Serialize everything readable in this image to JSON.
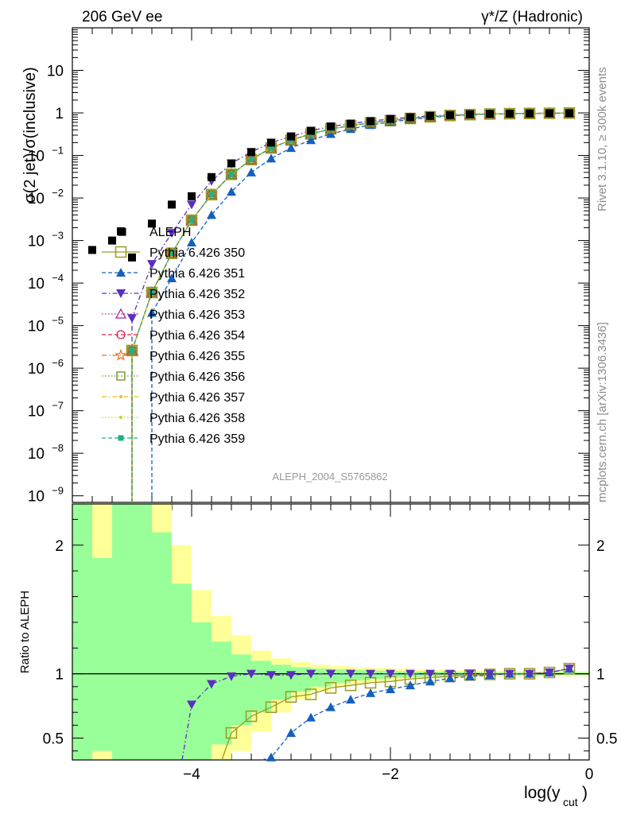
{
  "header": {
    "left": "206 GeV ee",
    "right": "γ*/Z (Hadronic)"
  },
  "side_text": {
    "top": "Rivet 3.1.10, ≥ 300k events",
    "bottom": "mcplots.cern.ch [arXiv:1306.3436]"
  },
  "analysis_label": "ALEPH_2004_S5765862",
  "chart_data": [
    {
      "type": "scatter",
      "panel": "main",
      "ylabel": "σ(2 jet)/σ(inclusive)",
      "y_scale": "log",
      "ylim": [
        7e-10,
        100
      ],
      "xlim": [
        -5.2,
        0
      ],
      "y_tick_labels": [
        "10^-9",
        "10^-8",
        "10^-7",
        "10^-6",
        "10^-5",
        "10^-4",
        "10^-3",
        "10^-2",
        "10^-1",
        "1",
        "10"
      ],
      "legend_position": "left-middle",
      "x": [
        -5.0,
        -4.8,
        -4.7,
        -4.6,
        -4.4,
        -4.2,
        -4.0,
        -3.8,
        -3.6,
        -3.4,
        -3.2,
        -3.0,
        -2.8,
        -2.6,
        -2.4,
        -2.2,
        -2.0,
        -1.8,
        -1.6,
        -1.4,
        -1.2,
        -1.0,
        -0.8,
        -0.6,
        -0.4,
        -0.2
      ],
      "series": [
        {
          "name": "ALEPH",
          "color": "#000000",
          "marker": "square-filled",
          "line": "none",
          "values": [
            0.0006,
            0.001,
            0.0016,
            0.0004,
            0.0025,
            0.007,
            0.011,
            0.031,
            0.065,
            0.12,
            0.2,
            0.28,
            0.38,
            0.48,
            0.56,
            0.64,
            0.72,
            0.79,
            0.85,
            0.89,
            0.93,
            0.95,
            0.96,
            0.97,
            0.98,
            0.985
          ]
        },
        {
          "name": "Pythia 6.426 350",
          "color": "#9a9a20",
          "marker": "square-open-large",
          "line": "solid",
          "values": [
            null,
            null,
            null,
            2.6e-06,
            6e-05,
            0.0005,
            0.003,
            0.012,
            0.036,
            0.08,
            0.15,
            0.23,
            0.32,
            0.42,
            0.5,
            0.58,
            0.66,
            0.74,
            0.81,
            0.87,
            0.91,
            0.94,
            0.96,
            0.97,
            0.98,
            0.99
          ]
        },
        {
          "name": "Pythia 6.426 351",
          "color": "#1560bd",
          "marker": "triangle-up-filled",
          "line": "dashed",
          "values": [
            null,
            null,
            null,
            null,
            2e-05,
            0.00013,
            0.0009,
            0.004,
            0.014,
            0.04,
            0.085,
            0.15,
            0.23,
            0.32,
            0.42,
            0.52,
            0.61,
            0.7,
            0.78,
            0.85,
            0.9,
            0.94,
            0.96,
            0.97,
            0.98,
            0.99
          ]
        },
        {
          "name": "Pythia 6.426 352",
          "color": "#5b2fbf",
          "marker": "triangle-down-filled",
          "line": "dashdot",
          "values": [
            null,
            null,
            null,
            1.5e-05,
            0.00028,
            0.0015,
            0.007,
            0.025,
            0.065,
            0.12,
            0.2,
            0.28,
            0.38,
            0.48,
            0.56,
            0.64,
            0.72,
            0.79,
            0.85,
            0.89,
            0.93,
            0.95,
            0.96,
            0.97,
            0.98,
            0.99
          ]
        },
        {
          "name": "Pythia 6.426 353",
          "color": "#b01f9e",
          "marker": "triangle-up-open",
          "line": "dotted",
          "values": [
            null,
            null,
            null,
            2.6e-06,
            6e-05,
            0.0005,
            0.003,
            0.012,
            0.036,
            0.08,
            0.15,
            0.23,
            0.32,
            0.42,
            0.5,
            0.58,
            0.66,
            0.74,
            0.81,
            0.87,
            0.91,
            0.94,
            0.96,
            0.97,
            0.98,
            0.99
          ]
        },
        {
          "name": "Pythia 6.426 354",
          "color": "#e0204a",
          "marker": "circle-open",
          "line": "dashed",
          "values": [
            null,
            null,
            null,
            2.6e-06,
            6e-05,
            0.0005,
            0.003,
            0.012,
            0.036,
            0.08,
            0.15,
            0.23,
            0.32,
            0.42,
            0.5,
            0.58,
            0.66,
            0.74,
            0.81,
            0.87,
            0.91,
            0.94,
            0.96,
            0.97,
            0.98,
            0.99
          ]
        },
        {
          "name": "Pythia 6.426 355",
          "color": "#f07020",
          "marker": "star-open",
          "line": "dashdot",
          "values": [
            null,
            null,
            null,
            2.6e-06,
            6e-05,
            0.0005,
            0.003,
            0.012,
            0.036,
            0.08,
            0.15,
            0.23,
            0.32,
            0.42,
            0.5,
            0.58,
            0.66,
            0.74,
            0.81,
            0.87,
            0.91,
            0.94,
            0.96,
            0.97,
            0.98,
            0.99
          ]
        },
        {
          "name": "Pythia 6.426 356",
          "color": "#6e8e1e",
          "marker": "square-open",
          "line": "dotted",
          "values": [
            null,
            null,
            null,
            2.6e-06,
            6e-05,
            0.0005,
            0.003,
            0.012,
            0.036,
            0.08,
            0.15,
            0.23,
            0.32,
            0.42,
            0.5,
            0.58,
            0.66,
            0.74,
            0.81,
            0.87,
            0.91,
            0.94,
            0.96,
            0.97,
            0.98,
            0.99
          ]
        },
        {
          "name": "Pythia 6.426 357",
          "color": "#e8c020",
          "marker": "dot",
          "line": "dashdot",
          "values": [
            null,
            null,
            null,
            2.6e-06,
            6e-05,
            0.0005,
            0.003,
            0.012,
            0.036,
            0.08,
            0.15,
            0.23,
            0.32,
            0.42,
            0.5,
            0.58,
            0.66,
            0.74,
            0.81,
            0.87,
            0.91,
            0.94,
            0.96,
            0.97,
            0.98,
            0.99
          ]
        },
        {
          "name": "Pythia 6.426 358",
          "color": "#c8d020",
          "marker": "dot",
          "line": "dotted",
          "values": [
            null,
            null,
            null,
            2.6e-06,
            6e-05,
            0.0005,
            0.003,
            0.012,
            0.036,
            0.08,
            0.15,
            0.23,
            0.32,
            0.42,
            0.5,
            0.58,
            0.66,
            0.74,
            0.81,
            0.87,
            0.91,
            0.94,
            0.96,
            0.97,
            0.98,
            0.99
          ]
        },
        {
          "name": "Pythia 6.426 359",
          "color": "#20b080",
          "marker": "square-filled-small",
          "line": "dashed",
          "values": [
            null,
            null,
            null,
            2.6e-06,
            6e-05,
            0.0005,
            0.003,
            0.012,
            0.036,
            0.08,
            0.15,
            0.23,
            0.32,
            0.42,
            0.5,
            0.58,
            0.66,
            0.74,
            0.81,
            0.87,
            0.91,
            0.94,
            0.96,
            0.97,
            0.98,
            0.99
          ]
        }
      ]
    },
    {
      "type": "scatter",
      "panel": "ratio",
      "ylabel": "Ratio to ALEPH",
      "xlabel": "log(y_cut)",
      "ylim": [
        0.33,
        2.32
      ],
      "xlim": [
        -5.2,
        0
      ],
      "x_ticks": [
        -4,
        -2,
        0
      ],
      "y_ticks": [
        0.5,
        1,
        2
      ],
      "reference_line": 1,
      "bands": {
        "bin_edges": [
          -5.2,
          -5.0,
          -4.8,
          -4.6,
          -4.4,
          -4.2,
          -4.0,
          -3.8,
          -3.6,
          -3.4,
          -3.2,
          -3.0,
          -2.8,
          -2.6,
          -2.4,
          -2.2,
          -2.0,
          -1.8,
          -1.6,
          -1.4,
          -1.2,
          -1.0,
          -0.8,
          -0.6,
          -0.4,
          -0.2,
          0.0
        ],
        "stat_color": "#99ff99",
        "total_color": "#ffff99",
        "stat_lo": [
          0.3,
          0.4,
          0.3,
          0.3,
          0.3,
          0.3,
          0.3,
          0.45,
          0.6,
          0.7,
          0.8,
          0.86,
          0.9,
          0.93,
          0.95,
          0.96,
          0.97,
          0.975,
          0.98,
          0.985,
          0.987,
          0.99,
          0.99,
          0.99,
          0.99,
          0.99
        ],
        "stat_hi": [
          2.4,
          1.9,
          2.4,
          2.4,
          2.1,
          1.7,
          1.4,
          1.25,
          1.15,
          1.1,
          1.07,
          1.05,
          1.04,
          1.035,
          1.03,
          1.025,
          1.02,
          1.018,
          1.015,
          1.013,
          1.012,
          1.01,
          1.01,
          1.01,
          1.01,
          1.01
        ],
        "total_lo": [
          0.3,
          0.3,
          0.3,
          0.3,
          0.3,
          0.3,
          0.3,
          0.3,
          0.4,
          0.55,
          0.7,
          0.8,
          0.86,
          0.9,
          0.92,
          0.94,
          0.95,
          0.96,
          0.965,
          0.97,
          0.975,
          0.978,
          0.98,
          0.98,
          0.98,
          0.98
        ],
        "total_hi": [
          2.4,
          2.4,
          2.4,
          2.4,
          2.4,
          2.0,
          1.65,
          1.45,
          1.3,
          1.18,
          1.12,
          1.09,
          1.07,
          1.06,
          1.05,
          1.045,
          1.04,
          1.035,
          1.03,
          1.027,
          1.025,
          1.023,
          1.022,
          1.02,
          1.02,
          1.02
        ]
      },
      "series": [
        {
          "name": "Pythia 6.426 350",
          "color": "#9a9a20",
          "points": [
            [
              -3.6,
              0.54
            ],
            [
              -3.4,
              0.67
            ],
            [
              -3.2,
              0.74
            ],
            [
              -3.0,
              0.82
            ],
            [
              -2.8,
              0.84
            ],
            [
              -2.6,
              0.89
            ],
            [
              -2.4,
              0.91
            ],
            [
              -2.2,
              0.93
            ],
            [
              -2.0,
              0.94
            ],
            [
              -1.8,
              0.96
            ],
            [
              -1.6,
              0.97
            ],
            [
              -1.4,
              0.98
            ],
            [
              -1.2,
              0.99
            ],
            [
              -1.0,
              0.995
            ],
            [
              -0.8,
              1.0
            ],
            [
              -0.6,
              1.0
            ],
            [
              -0.4,
              1.01
            ],
            [
              -0.2,
              1.04
            ]
          ]
        },
        {
          "name": "Pythia 6.426 351",
          "color": "#1560bd",
          "points": [
            [
              -3.2,
              0.35
            ],
            [
              -3.0,
              0.54
            ],
            [
              -2.8,
              0.66
            ],
            [
              -2.6,
              0.74
            ],
            [
              -2.4,
              0.8
            ],
            [
              -2.2,
              0.85
            ],
            [
              -2.0,
              0.88
            ],
            [
              -1.8,
              0.91
            ],
            [
              -1.6,
              0.94
            ],
            [
              -1.4,
              0.965
            ],
            [
              -1.2,
              0.98
            ],
            [
              -1.0,
              0.99
            ],
            [
              -0.8,
              1.0
            ],
            [
              -0.6,
              1.0
            ],
            [
              -0.4,
              1.01
            ],
            [
              -0.2,
              1.04
            ]
          ]
        },
        {
          "name": "Pythia 6.426 352",
          "color": "#5b2fbf",
          "points": [
            [
              -4.0,
              0.76
            ],
            [
              -3.8,
              0.92
            ],
            [
              -3.6,
              0.98
            ],
            [
              -3.4,
              1.0
            ],
            [
              -3.2,
              0.99
            ],
            [
              -3.0,
              0.99
            ],
            [
              -2.8,
              1.0
            ],
            [
              -2.6,
              1.0
            ],
            [
              -2.4,
              1.0
            ],
            [
              -2.2,
              1.0
            ],
            [
              -2.0,
              1.0
            ],
            [
              -1.8,
              1.0
            ],
            [
              -1.6,
              1.0
            ],
            [
              -1.4,
              1.0
            ],
            [
              -1.2,
              1.0
            ],
            [
              -1.0,
              1.0
            ],
            [
              -0.8,
              1.0
            ],
            [
              -0.6,
              1.0
            ],
            [
              -0.4,
              1.01
            ],
            [
              -0.2,
              1.04
            ]
          ]
        }
      ]
    }
  ]
}
